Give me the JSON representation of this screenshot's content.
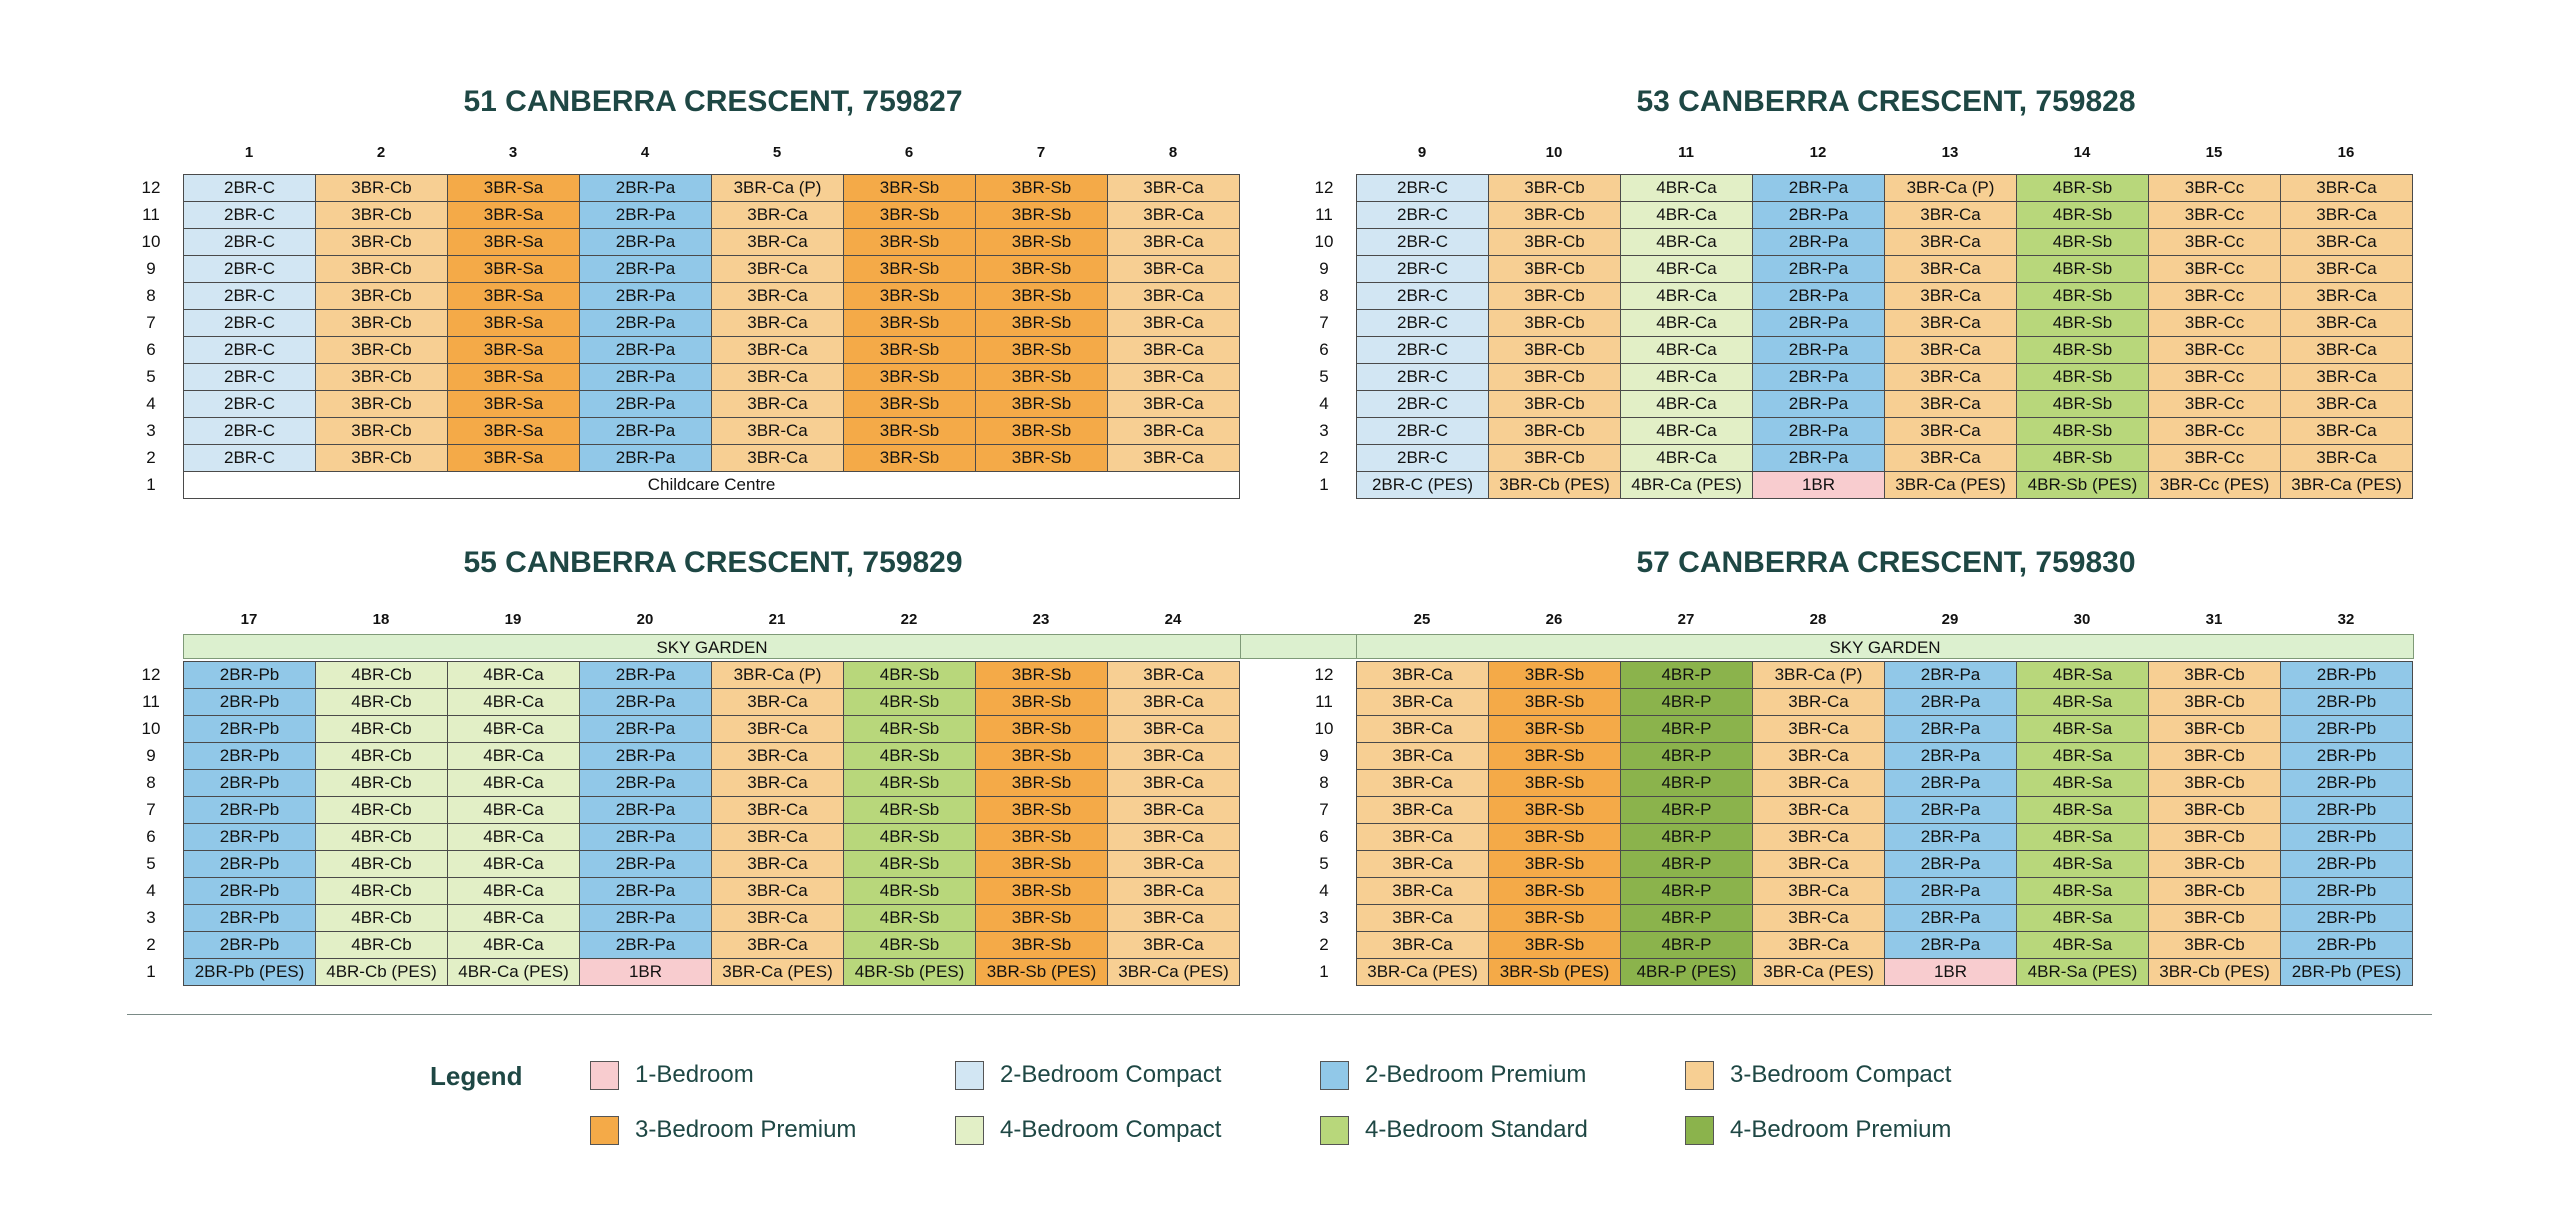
{
  "colors": {
    "2BR-C": "#d2e6f3",
    "3BR-Cb": "#f7cf93",
    "3BR-Ca": "#f7cf93",
    "3BR-Cc": "#f7cf93",
    "3BR-Sa": "#f4aa48",
    "3BR-Sb": "#f4aa48",
    "2BR-Pa": "#91c8e8",
    "2BR-Pb": "#91c8e8",
    "4BR-Ca": "#e2efc6",
    "4BR-Cb": "#e2efc6",
    "4BR-Sa": "#b8d77b",
    "4BR-Sb": "#b8d77b",
    "4BR-P": "#8bb34c",
    "1BR": "#f8cccf",
    "white": "#ffffff"
  },
  "floors": [
    "12",
    "11",
    "10",
    "9",
    "8",
    "7",
    "6",
    "5",
    "4",
    "3",
    "2",
    "1"
  ],
  "blocks": [
    {
      "title": "51 CANBERRA CRESCENT, 759827",
      "columns": [
        "1",
        "2",
        "3",
        "4",
        "5",
        "6",
        "7",
        "8"
      ],
      "upper_rows": [
        [
          "2BR-C",
          "3BR-Cb",
          "3BR-Sa",
          "2BR-Pa",
          "3BR-Ca (P)",
          "3BR-Sb",
          "3BR-Sb",
          "3BR-Ca"
        ],
        [
          "2BR-C",
          "3BR-Cb",
          "3BR-Sa",
          "2BR-Pa",
          "3BR-Ca",
          "3BR-Sb",
          "3BR-Sb",
          "3BR-Ca"
        ],
        [
          "2BR-C",
          "3BR-Cb",
          "3BR-Sa",
          "2BR-Pa",
          "3BR-Ca",
          "3BR-Sb",
          "3BR-Sb",
          "3BR-Ca"
        ],
        [
          "2BR-C",
          "3BR-Cb",
          "3BR-Sa",
          "2BR-Pa",
          "3BR-Ca",
          "3BR-Sb",
          "3BR-Sb",
          "3BR-Ca"
        ],
        [
          "2BR-C",
          "3BR-Cb",
          "3BR-Sa",
          "2BR-Pa",
          "3BR-Ca",
          "3BR-Sb",
          "3BR-Sb",
          "3BR-Ca"
        ],
        [
          "2BR-C",
          "3BR-Cb",
          "3BR-Sa",
          "2BR-Pa",
          "3BR-Ca",
          "3BR-Sb",
          "3BR-Sb",
          "3BR-Ca"
        ],
        [
          "2BR-C",
          "3BR-Cb",
          "3BR-Sa",
          "2BR-Pa",
          "3BR-Ca",
          "3BR-Sb",
          "3BR-Sb",
          "3BR-Ca"
        ],
        [
          "2BR-C",
          "3BR-Cb",
          "3BR-Sa",
          "2BR-Pa",
          "3BR-Ca",
          "3BR-Sb",
          "3BR-Sb",
          "3BR-Ca"
        ],
        [
          "2BR-C",
          "3BR-Cb",
          "3BR-Sa",
          "2BR-Pa",
          "3BR-Ca",
          "3BR-Sb",
          "3BR-Sb",
          "3BR-Ca"
        ],
        [
          "2BR-C",
          "3BR-Cb",
          "3BR-Sa",
          "2BR-Pa",
          "3BR-Ca",
          "3BR-Sb",
          "3BR-Sb",
          "3BR-Ca"
        ],
        [
          "2BR-C",
          "3BR-Cb",
          "3BR-Sa",
          "2BR-Pa",
          "3BR-Ca",
          "3BR-Sb",
          "3BR-Sb",
          "3BR-Ca"
        ]
      ],
      "ground_span": "Childcare Centre"
    },
    {
      "title": "53 CANBERRA CRESCENT, 759828",
      "columns": [
        "9",
        "10",
        "11",
        "12",
        "13",
        "14",
        "15",
        "16"
      ],
      "upper_rows": [
        [
          "2BR-C",
          "3BR-Cb",
          "4BR-Ca",
          "2BR-Pa",
          "3BR-Ca (P)",
          "4BR-Sb",
          "3BR-Cc",
          "3BR-Ca"
        ],
        [
          "2BR-C",
          "3BR-Cb",
          "4BR-Ca",
          "2BR-Pa",
          "3BR-Ca",
          "4BR-Sb",
          "3BR-Cc",
          "3BR-Ca"
        ],
        [
          "2BR-C",
          "3BR-Cb",
          "4BR-Ca",
          "2BR-Pa",
          "3BR-Ca",
          "4BR-Sb",
          "3BR-Cc",
          "3BR-Ca"
        ],
        [
          "2BR-C",
          "3BR-Cb",
          "4BR-Ca",
          "2BR-Pa",
          "3BR-Ca",
          "4BR-Sb",
          "3BR-Cc",
          "3BR-Ca"
        ],
        [
          "2BR-C",
          "3BR-Cb",
          "4BR-Ca",
          "2BR-Pa",
          "3BR-Ca",
          "4BR-Sb",
          "3BR-Cc",
          "3BR-Ca"
        ],
        [
          "2BR-C",
          "3BR-Cb",
          "4BR-Ca",
          "2BR-Pa",
          "3BR-Ca",
          "4BR-Sb",
          "3BR-Cc",
          "3BR-Ca"
        ],
        [
          "2BR-C",
          "3BR-Cb",
          "4BR-Ca",
          "2BR-Pa",
          "3BR-Ca",
          "4BR-Sb",
          "3BR-Cc",
          "3BR-Ca"
        ],
        [
          "2BR-C",
          "3BR-Cb",
          "4BR-Ca",
          "2BR-Pa",
          "3BR-Ca",
          "4BR-Sb",
          "3BR-Cc",
          "3BR-Ca"
        ],
        [
          "2BR-C",
          "3BR-Cb",
          "4BR-Ca",
          "2BR-Pa",
          "3BR-Ca",
          "4BR-Sb",
          "3BR-Cc",
          "3BR-Ca"
        ],
        [
          "2BR-C",
          "3BR-Cb",
          "4BR-Ca",
          "2BR-Pa",
          "3BR-Ca",
          "4BR-Sb",
          "3BR-Cc",
          "3BR-Ca"
        ],
        [
          "2BR-C",
          "3BR-Cb",
          "4BR-Ca",
          "2BR-Pa",
          "3BR-Ca",
          "4BR-Sb",
          "3BR-Cc",
          "3BR-Ca"
        ]
      ],
      "ground_row": [
        "2BR-C (PES)",
        "3BR-Cb (PES)",
        "4BR-Ca (PES)",
        "1BR",
        "3BR-Ca (PES)",
        "4BR-Sb (PES)",
        "3BR-Cc (PES)",
        "3BR-Ca (PES)"
      ]
    },
    {
      "title": "55 CANBERRA CRESCENT, 759829",
      "columns": [
        "17",
        "18",
        "19",
        "20",
        "21",
        "22",
        "23",
        "24"
      ],
      "upper_rows": [
        [
          "2BR-Pb",
          "4BR-Cb",
          "4BR-Ca",
          "2BR-Pa",
          "3BR-Ca (P)",
          "4BR-Sb",
          "3BR-Sb",
          "3BR-Ca"
        ],
        [
          "2BR-Pb",
          "4BR-Cb",
          "4BR-Ca",
          "2BR-Pa",
          "3BR-Ca",
          "4BR-Sb",
          "3BR-Sb",
          "3BR-Ca"
        ],
        [
          "2BR-Pb",
          "4BR-Cb",
          "4BR-Ca",
          "2BR-Pa",
          "3BR-Ca",
          "4BR-Sb",
          "3BR-Sb",
          "3BR-Ca"
        ],
        [
          "2BR-Pb",
          "4BR-Cb",
          "4BR-Ca",
          "2BR-Pa",
          "3BR-Ca",
          "4BR-Sb",
          "3BR-Sb",
          "3BR-Ca"
        ],
        [
          "2BR-Pb",
          "4BR-Cb",
          "4BR-Ca",
          "2BR-Pa",
          "3BR-Ca",
          "4BR-Sb",
          "3BR-Sb",
          "3BR-Ca"
        ],
        [
          "2BR-Pb",
          "4BR-Cb",
          "4BR-Ca",
          "2BR-Pa",
          "3BR-Ca",
          "4BR-Sb",
          "3BR-Sb",
          "3BR-Ca"
        ],
        [
          "2BR-Pb",
          "4BR-Cb",
          "4BR-Ca",
          "2BR-Pa",
          "3BR-Ca",
          "4BR-Sb",
          "3BR-Sb",
          "3BR-Ca"
        ],
        [
          "2BR-Pb",
          "4BR-Cb",
          "4BR-Ca",
          "2BR-Pa",
          "3BR-Ca",
          "4BR-Sb",
          "3BR-Sb",
          "3BR-Ca"
        ],
        [
          "2BR-Pb",
          "4BR-Cb",
          "4BR-Ca",
          "2BR-Pa",
          "3BR-Ca",
          "4BR-Sb",
          "3BR-Sb",
          "3BR-Ca"
        ],
        [
          "2BR-Pb",
          "4BR-Cb",
          "4BR-Ca",
          "2BR-Pa",
          "3BR-Ca",
          "4BR-Sb",
          "3BR-Sb",
          "3BR-Ca"
        ],
        [
          "2BR-Pb",
          "4BR-Cb",
          "4BR-Ca",
          "2BR-Pa",
          "3BR-Ca",
          "4BR-Sb",
          "3BR-Sb",
          "3BR-Ca"
        ]
      ],
      "ground_row": [
        "2BR-Pb (PES)",
        "4BR-Cb (PES)",
        "4BR-Ca (PES)",
        "1BR",
        "3BR-Ca (PES)",
        "4BR-Sb (PES)",
        "3BR-Sb (PES)",
        "3BR-Ca (PES)"
      ],
      "sky_garden": "SKY GARDEN"
    },
    {
      "title": "57 CANBERRA CRESCENT, 759830",
      "columns": [
        "25",
        "26",
        "27",
        "28",
        "29",
        "30",
        "31",
        "32"
      ],
      "upper_rows": [
        [
          "3BR-Ca",
          "3BR-Sb",
          "4BR-P",
          "3BR-Ca (P)",
          "2BR-Pa",
          "4BR-Sa",
          "3BR-Cb",
          "2BR-Pb"
        ],
        [
          "3BR-Ca",
          "3BR-Sb",
          "4BR-P",
          "3BR-Ca",
          "2BR-Pa",
          "4BR-Sa",
          "3BR-Cb",
          "2BR-Pb"
        ],
        [
          "3BR-Ca",
          "3BR-Sb",
          "4BR-P",
          "3BR-Ca",
          "2BR-Pa",
          "4BR-Sa",
          "3BR-Cb",
          "2BR-Pb"
        ],
        [
          "3BR-Ca",
          "3BR-Sb",
          "4BR-P",
          "3BR-Ca",
          "2BR-Pa",
          "4BR-Sa",
          "3BR-Cb",
          "2BR-Pb"
        ],
        [
          "3BR-Ca",
          "3BR-Sb",
          "4BR-P",
          "3BR-Ca",
          "2BR-Pa",
          "4BR-Sa",
          "3BR-Cb",
          "2BR-Pb"
        ],
        [
          "3BR-Ca",
          "3BR-Sb",
          "4BR-P",
          "3BR-Ca",
          "2BR-Pa",
          "4BR-Sa",
          "3BR-Cb",
          "2BR-Pb"
        ],
        [
          "3BR-Ca",
          "3BR-Sb",
          "4BR-P",
          "3BR-Ca",
          "2BR-Pa",
          "4BR-Sa",
          "3BR-Cb",
          "2BR-Pb"
        ],
        [
          "3BR-Ca",
          "3BR-Sb",
          "4BR-P",
          "3BR-Ca",
          "2BR-Pa",
          "4BR-Sa",
          "3BR-Cb",
          "2BR-Pb"
        ],
        [
          "3BR-Ca",
          "3BR-Sb",
          "4BR-P",
          "3BR-Ca",
          "2BR-Pa",
          "4BR-Sa",
          "3BR-Cb",
          "2BR-Pb"
        ],
        [
          "3BR-Ca",
          "3BR-Sb",
          "4BR-P",
          "3BR-Ca",
          "2BR-Pa",
          "4BR-Sa",
          "3BR-Cb",
          "2BR-Pb"
        ],
        [
          "3BR-Ca",
          "3BR-Sb",
          "4BR-P",
          "3BR-Ca",
          "2BR-Pa",
          "4BR-Sa",
          "3BR-Cb",
          "2BR-Pb"
        ]
      ],
      "ground_row": [
        "3BR-Ca (PES)",
        "3BR-Sb (PES)",
        "4BR-P (PES)",
        "3BR-Ca (PES)",
        "1BR",
        "4BR-Sa (PES)",
        "3BR-Cb (PES)",
        "2BR-Pb (PES)"
      ],
      "sky_garden": "SKY GARDEN"
    }
  ],
  "legend": {
    "title": "Legend",
    "items": [
      {
        "label": "1-Bedroom",
        "color": "#f8cccf"
      },
      {
        "label": "2-Bedroom Compact",
        "color": "#d2e6f3"
      },
      {
        "label": "2-Bedroom Premium",
        "color": "#91c8e8"
      },
      {
        "label": "3-Bedroom Compact",
        "color": "#f7cf93"
      },
      {
        "label": "3-Bedroom Premium",
        "color": "#f4aa48"
      },
      {
        "label": "4-Bedroom Compact",
        "color": "#e2efc6"
      },
      {
        "label": "4-Bedroom Standard",
        "color": "#b8d77b"
      },
      {
        "label": "4-Bedroom Premium",
        "color": "#8bb34c"
      }
    ]
  }
}
